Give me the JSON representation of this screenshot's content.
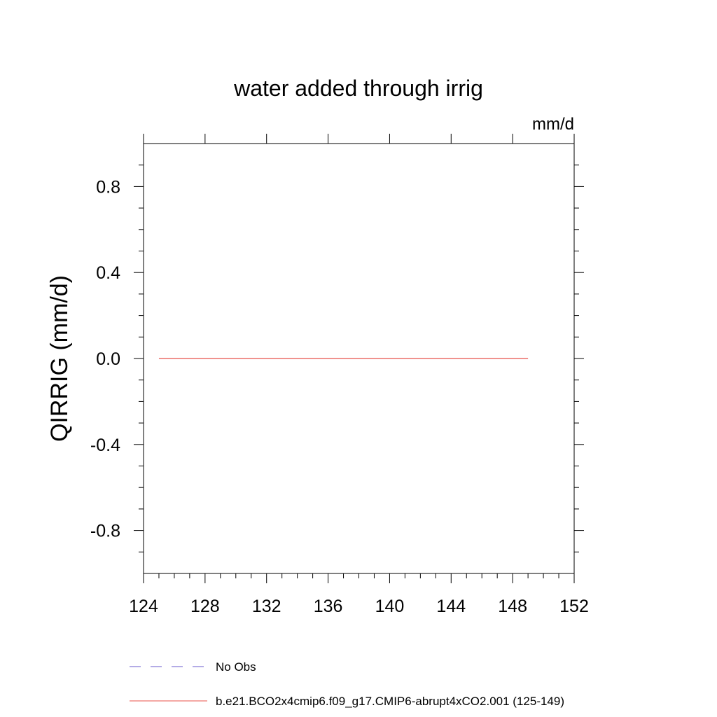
{
  "chart_data": {
    "type": "line",
    "title": "water added through irrig",
    "units_label": "mm/d",
    "xlabel": "",
    "ylabel": "QIRRIG  (mm/d)",
    "xlim": [
      124,
      152
    ],
    "ylim": [
      -1.0,
      1.0
    ],
    "x_ticks": [
      124,
      128,
      132,
      136,
      140,
      144,
      148,
      152
    ],
    "x_tick_labels": [
      "124",
      "128",
      "132",
      "136",
      "140",
      "144",
      "148",
      "152"
    ],
    "y_ticks": [
      0.8,
      0.4,
      0.0,
      -0.4,
      -0.8
    ],
    "y_tick_labels": [
      "0.8",
      "0.4",
      "0.0",
      "-0.4",
      "-0.8"
    ],
    "grid": false,
    "legend_position": "bottom",
    "series": [
      {
        "name": "No Obs",
        "color": "#6a5acd",
        "dash": "dashed",
        "x": [],
        "y": []
      },
      {
        "name": "b.e21.BCO2x4cmip6.f09_g17.CMIP6-abrupt4xCO2.001 (125-149)",
        "color": "#e8504a",
        "dash": "solid",
        "x": [
          125,
          149
        ],
        "y": [
          0.0,
          0.0
        ]
      }
    ]
  }
}
